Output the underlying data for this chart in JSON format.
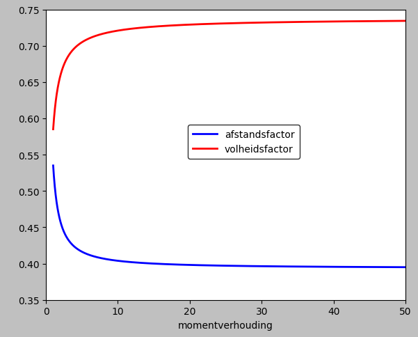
{
  "title": "",
  "xlabel": "momentverhouding",
  "ylabel": "",
  "xlim": [
    0,
    50
  ],
  "ylim": [
    0.35,
    0.75
  ],
  "xticks": [
    0,
    10,
    20,
    30,
    40,
    50
  ],
  "yticks": [
    0.35,
    0.4,
    0.45,
    0.5,
    0.55,
    0.6,
    0.65,
    0.7,
    0.75
  ],
  "line_blue_label": "afstandsfactor",
  "line_red_label": "volheidsfactor",
  "line_blue_color": "#0000ff",
  "line_red_color": "#ff0000",
  "background_color": "#c0c0c0",
  "axes_background": "#ffffff",
  "linewidth": 2.0,
  "font_size": 10,
  "blue_inf": 0.3933,
  "blue_k": 0.1417,
  "blue_alpha": 1.13,
  "red_inf": 0.738,
  "red_k": 0.153,
  "red_alpha": 0.95
}
